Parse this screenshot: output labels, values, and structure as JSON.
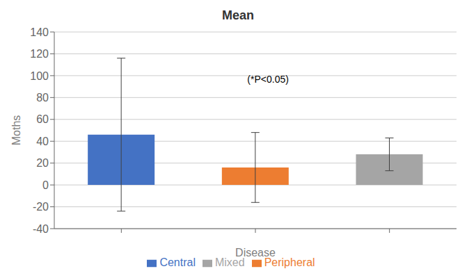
{
  "chart_data": {
    "type": "bar",
    "title": "Mean",
    "xlabel": "Disease",
    "ylabel": "Moths",
    "categories": [
      null,
      null,
      null
    ],
    "series": [
      {
        "name": "Central",
        "color": "#4472C4",
        "values": [
          46,
          null,
          null
        ],
        "errors": [
          70,
          null,
          null
        ]
      },
      {
        "name": "Peripheral",
        "color": "#ED7D31",
        "values": [
          null,
          16,
          null
        ],
        "errors": [
          null,
          32,
          null
        ]
      },
      {
        "name": "Mixed",
        "color": "#A5A5A5",
        "values": [
          null,
          null,
          28
        ],
        "errors": [
          null,
          null,
          15
        ]
      }
    ],
    "stacked": true,
    "ylim": [
      -40,
      140
    ],
    "yticks": [
      -40,
      -20,
      0,
      20,
      40,
      60,
      80,
      100,
      120,
      140
    ],
    "annotation": "(*P<0.05)",
    "grid": true,
    "legend": "bottom"
  }
}
